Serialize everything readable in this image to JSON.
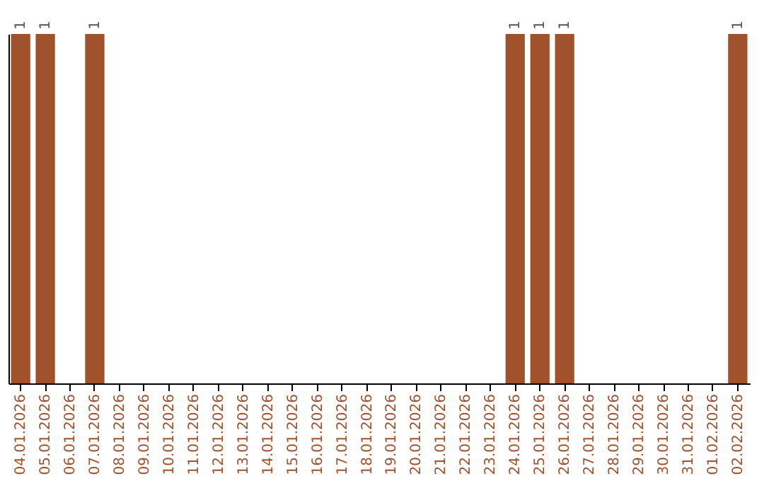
{
  "chart_data": {
    "type": "bar",
    "categories": [
      "04.01.2026",
      "05.01.2026",
      "06.01.2026",
      "07.01.2026",
      "08.01.2026",
      "09.01.2026",
      "10.01.2026",
      "11.01.2026",
      "12.01.2026",
      "13.01.2026",
      "14.01.2026",
      "15.01.2026",
      "16.01.2026",
      "17.01.2026",
      "18.01.2026",
      "19.01.2026",
      "20.01.2026",
      "21.01.2026",
      "22.01.2026",
      "23.01.2026",
      "24.01.2026",
      "25.01.2026",
      "26.01.2026",
      "27.01.2026",
      "28.01.2026",
      "29.01.2026",
      "30.01.2026",
      "31.01.2026",
      "01.02.2026",
      "02.02.2026"
    ],
    "values": [
      1,
      1,
      null,
      1,
      null,
      null,
      null,
      null,
      null,
      null,
      null,
      null,
      null,
      null,
      null,
      null,
      null,
      null,
      null,
      null,
      1,
      1,
      1,
      null,
      null,
      null,
      null,
      null,
      null,
      1
    ],
    "color": "#a0522d",
    "data_labels": true
  }
}
